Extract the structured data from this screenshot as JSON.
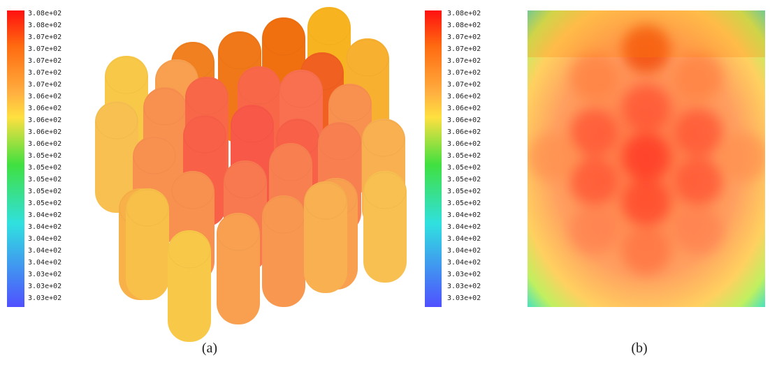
{
  "panels": [
    {
      "caption": "(a)",
      "colorbar": [
        "3.08e+02",
        "3.08e+02",
        "3.07e+02",
        "3.07e+02",
        "3.07e+02",
        "3.07e+02",
        "3.07e+02",
        "3.06e+02",
        "3.06e+02",
        "3.06e+02",
        "3.06e+02",
        "3.06e+02",
        "3.05e+02",
        "3.05e+02",
        "3.05e+02",
        "3.05e+02",
        "3.05e+02",
        "3.04e+02",
        "3.04e+02",
        "3.04e+02",
        "3.04e+02",
        "3.04e+02",
        "3.03e+02",
        "3.03e+02",
        "3.03e+02"
      ]
    },
    {
      "caption": "(b)",
      "colorbar": [
        "3.08e+02",
        "3.08e+02",
        "3.07e+02",
        "3.07e+02",
        "3.07e+02",
        "3.07e+02",
        "3.07e+02",
        "3.06e+02",
        "3.06e+02",
        "3.06e+02",
        "3.06e+02",
        "3.06e+02",
        "3.05e+02",
        "3.05e+02",
        "3.05e+02",
        "3.05e+02",
        "3.05e+02",
        "3.04e+02",
        "3.04e+02",
        "3.04e+02",
        "3.04e+02",
        "3.04e+02",
        "3.03e+02",
        "3.03e+02",
        "3.03e+02"
      ]
    }
  ]
}
